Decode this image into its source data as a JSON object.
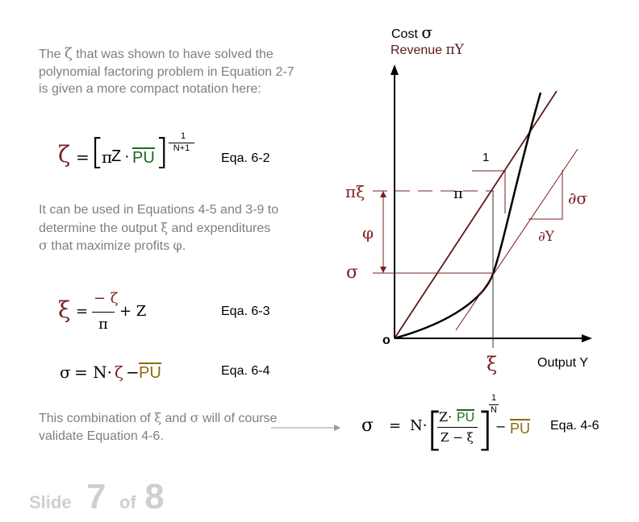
{
  "intro": {
    "pre": "The ",
    "zeta": "ζ",
    "post": " that was shown to have solved the polynomial factoring problem in Equation 2-7 is given a more compact notation here:"
  },
  "eq62": {
    "zeta": "ζ",
    "eq": "=",
    "pi": "π",
    "z": "Z",
    "dot": "·",
    "pu": "PU",
    "exp_num": "1",
    "exp_den": "N+1",
    "label": "Eqa. 6-2"
  },
  "para2": {
    "a": "It can be used in Equations 4-5 and 3-9 to determine the output ",
    "xi": "ξ",
    "b": " and expenditures ",
    "sigma": "σ",
    "c": " that maximize profits ",
    "phi": "φ",
    "d": "."
  },
  "eq63": {
    "xi": "ξ",
    "eq": "=",
    "num": "− ζ",
    "den": "π",
    "tail": "+ Z",
    "label": "Eqa. 6-3"
  },
  "eq64": {
    "sigma": "σ",
    "eq_n": "= N·",
    "zeta": "ζ",
    "minus": "−",
    "pu": "PU",
    "label": "Eqa. 6-4"
  },
  "combo": {
    "a": "This combination of ",
    "xi": "ξ",
    "b": " and ",
    "sigma": "σ",
    "c": " will of course validate Equation 4-6."
  },
  "eq46": {
    "sigma": "σ",
    "eq": "=",
    "n": "N·",
    "num_z": "Z·",
    "pu": "PU",
    "den": "Z − ξ",
    "exp_num": "1",
    "exp_den": "N",
    "minus": "−",
    "pu2": "PU",
    "label": "Eqa. 4-6"
  },
  "graph": {
    "cost": "Cost",
    "cost_sym": "σ",
    "revenue": "Revenue",
    "revenue_sym": "πY",
    "pi_xi": "πξ",
    "phi": "φ",
    "sigma": "σ",
    "origin": "o",
    "xi": "ξ",
    "output": "Output Y",
    "one": "1",
    "pi": "π",
    "dsigma": "∂σ",
    "dy": "∂Y"
  },
  "footer": {
    "slide": "Slide",
    "num": "7",
    "of": "of",
    "total": "8"
  },
  "colors": {
    "dark_red": "#7a1f1f",
    "green": "#1a6a1a",
    "olive": "#8a6a10",
    "gray": "#7f7f7f"
  }
}
